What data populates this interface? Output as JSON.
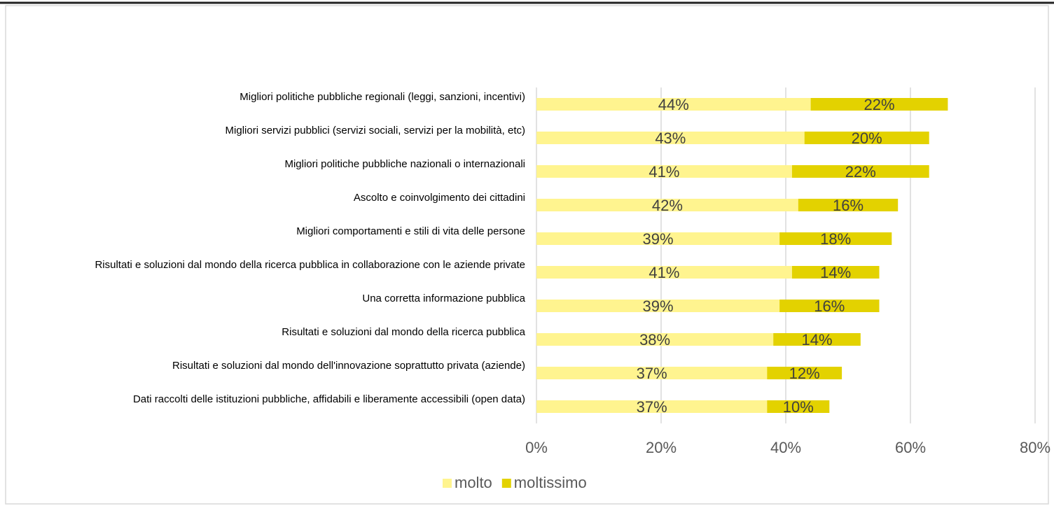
{
  "chart_data": {
    "type": "stacked-barh",
    "categories": [
      "Migliori politiche pubbliche regionali (leggi, sanzioni, incentivi)",
      "Migliori servizi pubblici (servizi sociali, servizi per la mobilità, etc)",
      "Migliori politiche pubbliche nazionali o internazionali",
      "Ascolto e coinvolgimento dei cittadini",
      "Migliori comportamenti e stili di vita delle persone",
      "Risultati e soluzioni dal mondo della ricerca pubblica in collaborazione con le aziende private",
      "Una corretta informazione pubblica",
      "Risultati e soluzioni dal mondo della ricerca pubblica",
      "Risultati e soluzioni dal mondo dell'innovazione soprattutto privata (aziende)",
      "Dati raccolti delle istituzioni pubbliche, affidabili e liberamente accessibili (open data)"
    ],
    "series": [
      {
        "name": "molto",
        "color": "#fff48f",
        "values": [
          44,
          43,
          41,
          42,
          39,
          41,
          39,
          38,
          37,
          37
        ],
        "value_labels": [
          "44%",
          "43%",
          "41%",
          "42%",
          "39%",
          "41%",
          "39%",
          "38%",
          "37%",
          "37%"
        ]
      },
      {
        "name": "moltissimo",
        "color": "#e3d200",
        "values": [
          22,
          20,
          22,
          16,
          18,
          14,
          16,
          14,
          12,
          10
        ],
        "value_labels": [
          "22%",
          "20%",
          "22%",
          "16%",
          "18%",
          "14%",
          "16%",
          "14%",
          "12%",
          "10%"
        ]
      }
    ],
    "xlim": [
      0,
      80
    ],
    "xticks": [
      {
        "value": 0,
        "label": "0%"
      },
      {
        "value": 20,
        "label": "20%"
      },
      {
        "value": 40,
        "label": "40%"
      },
      {
        "value": 60,
        "label": "60%"
      },
      {
        "value": 80,
        "label": "80%"
      }
    ],
    "grid": true,
    "legend": "bottom"
  }
}
